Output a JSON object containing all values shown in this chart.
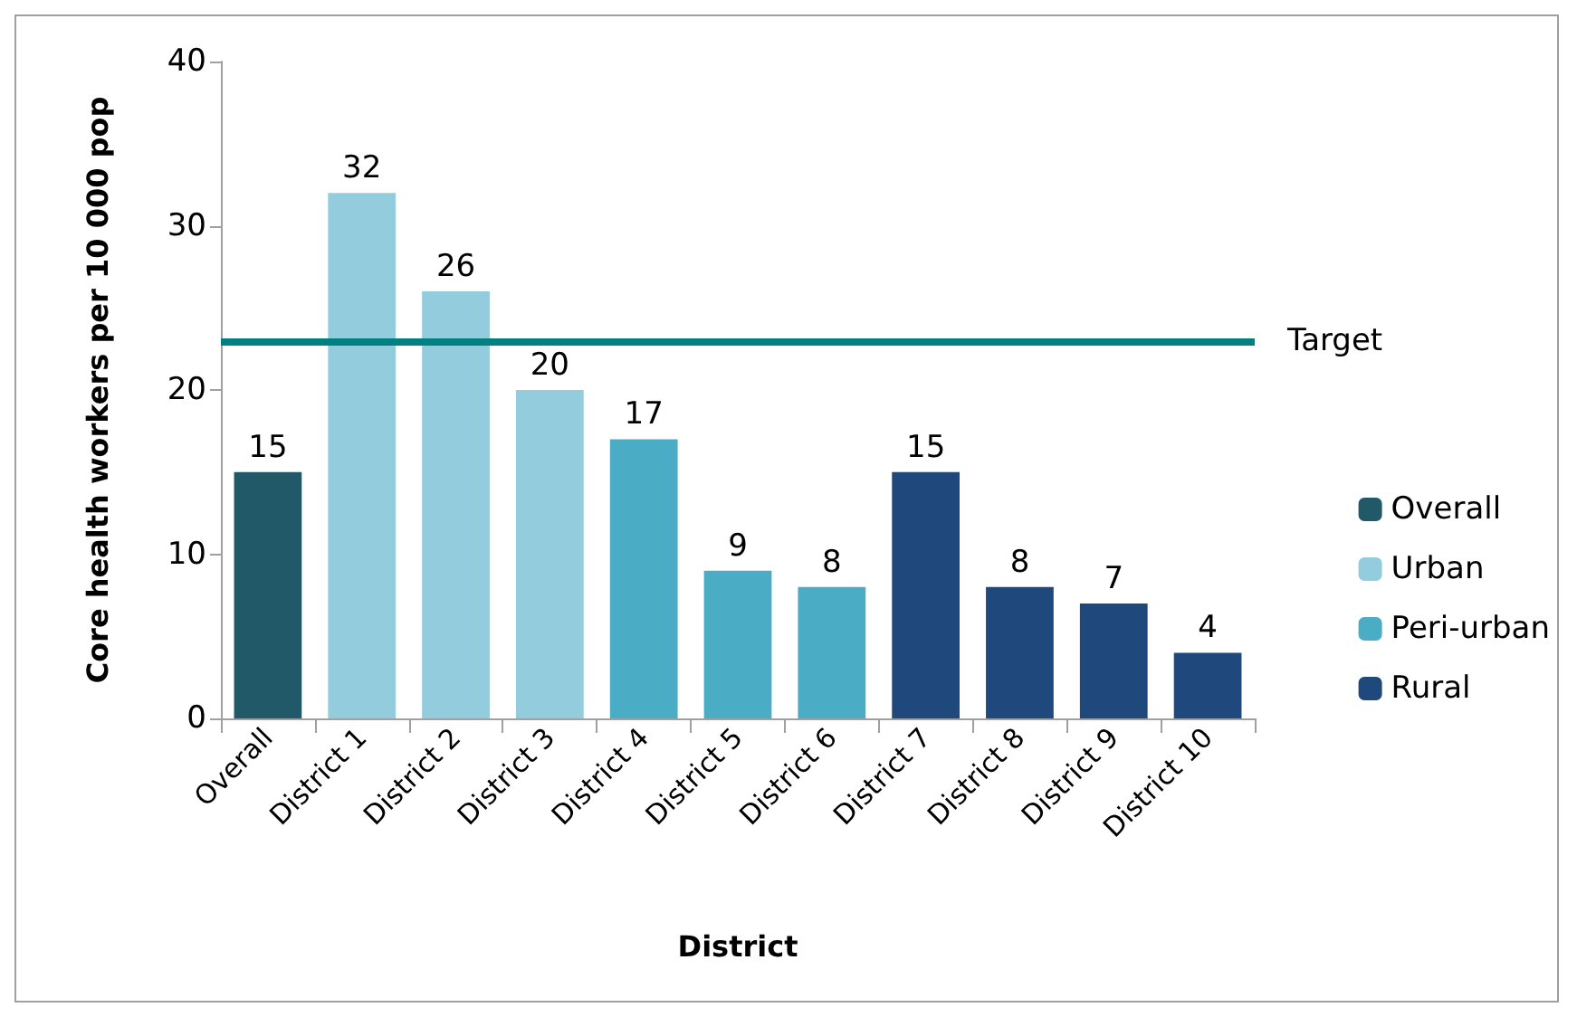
{
  "chart_data": {
    "type": "bar",
    "xlabel": "District",
    "ylabel": "Core health workers per 10 000 pop",
    "categories": [
      "Overall",
      "District 1",
      "District 2",
      "District 3",
      "District 4",
      "District 5",
      "District 6",
      "District 7",
      "District 8",
      "District 9",
      "District 10"
    ],
    "series": [
      {
        "name": "Overall",
        "color": "#215968",
        "values": [
          15,
          null,
          null,
          null,
          null,
          null,
          null,
          null,
          null,
          null,
          null
        ]
      },
      {
        "name": "Urban",
        "color": "#93cddd",
        "values": [
          null,
          32,
          26,
          20,
          null,
          null,
          null,
          null,
          null,
          null,
          null
        ]
      },
      {
        "name": "Peri-urban",
        "color": "#4bacc6",
        "values": [
          null,
          null,
          null,
          null,
          17,
          9,
          8,
          null,
          null,
          null,
          null
        ]
      },
      {
        "name": "Rural",
        "color": "#1f497d",
        "values": [
          null,
          null,
          null,
          null,
          null,
          null,
          null,
          15,
          8,
          7,
          4
        ]
      }
    ],
    "ylim": [
      0,
      40
    ],
    "yticks": [
      0,
      10,
      20,
      30,
      40
    ],
    "ref_lines": [
      {
        "axis": "y",
        "value": 23,
        "label": "Target",
        "color": "#008080"
      }
    ],
    "data_labels": true,
    "grid": false,
    "legend": "right"
  }
}
